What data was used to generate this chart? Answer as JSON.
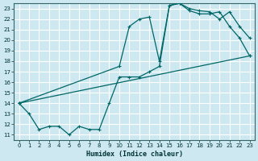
{
  "xlabel": "Humidex (Indice chaleur)",
  "ylabel": "",
  "bg_color": "#cde8f0",
  "grid_color": "#ffffff",
  "line_color": "#006666",
  "xlim": [
    -0.5,
    23.5
  ],
  "ylim": [
    10.5,
    23.5
  ],
  "xticks": [
    0,
    1,
    2,
    3,
    4,
    5,
    6,
    7,
    8,
    9,
    10,
    11,
    12,
    13,
    14,
    15,
    16,
    17,
    18,
    19,
    20,
    21,
    22,
    23
  ],
  "yticks": [
    11,
    12,
    13,
    14,
    15,
    16,
    17,
    18,
    19,
    20,
    21,
    22,
    23
  ],
  "line1_x": [
    0,
    1,
    2,
    3,
    4,
    5,
    6,
    7,
    8,
    9,
    10,
    11,
    12,
    13,
    14,
    15,
    16,
    17,
    18,
    19,
    20,
    21,
    22,
    23
  ],
  "line1_y": [
    14.0,
    13.0,
    11.5,
    11.8,
    11.8,
    11.0,
    11.8,
    11.5,
    11.5,
    14.0,
    16.5,
    16.5,
    16.5,
    17.0,
    17.5,
    23.3,
    23.5,
    23.0,
    22.8,
    22.7,
    22.0,
    22.7,
    21.3,
    20.2
  ],
  "line2_x": [
    0,
    10,
    11,
    12,
    13,
    14,
    15,
    16,
    17,
    18,
    19,
    20,
    21,
    22,
    23
  ],
  "line2_y": [
    14.0,
    17.5,
    21.3,
    22.0,
    22.2,
    18.0,
    23.3,
    23.5,
    22.8,
    22.5,
    22.5,
    22.7,
    21.3,
    20.2,
    18.5
  ],
  "line3_x": [
    0,
    23
  ],
  "line3_y": [
    14.0,
    18.5
  ],
  "marker": "+"
}
